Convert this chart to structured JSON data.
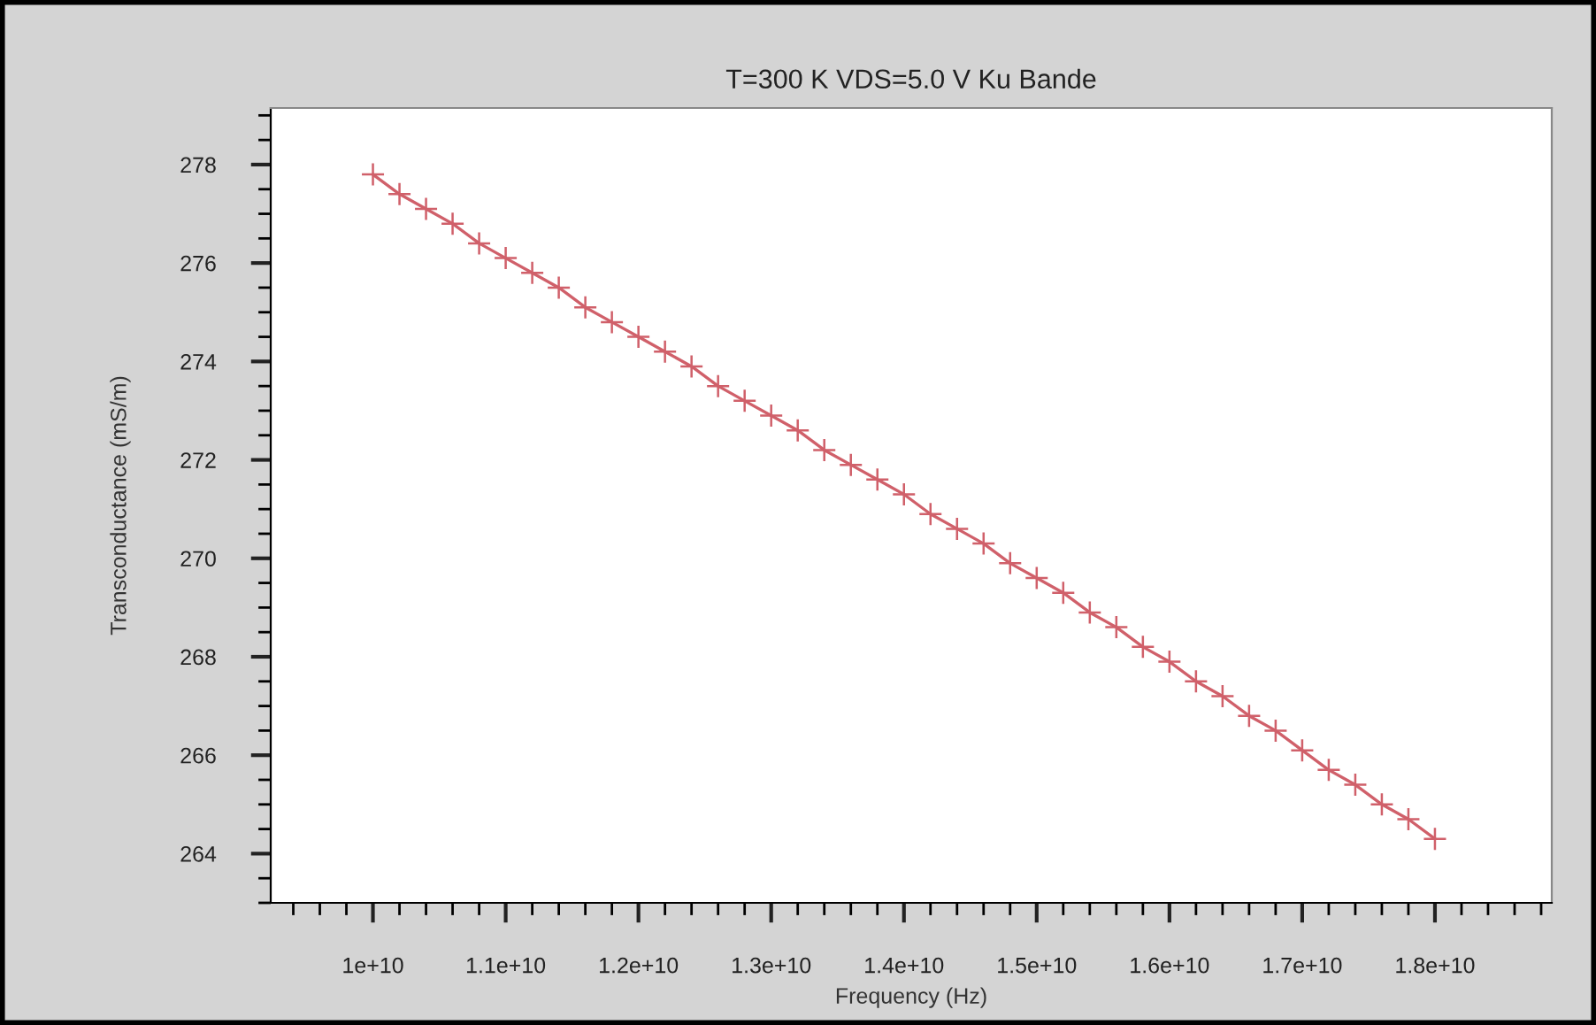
{
  "chart_data": {
    "type": "line",
    "title": "T=300 K VDS=5.0 V Ku Bande",
    "xlabel": "Frequency (Hz)",
    "ylabel": "Transconductance (mS/m)",
    "x": [
      10000000000.0,
      10200000000.0,
      10400000000.0,
      10600000000.0,
      10800000000.0,
      11000000000.0,
      11200000000.0,
      11400000000.0,
      11600000000.0,
      11800000000.0,
      12000000000.0,
      12200000000.0,
      12400000000.0,
      12600000000.0,
      12800000000.0,
      13000000000.0,
      13200000000.0,
      13400000000.0,
      13600000000.0,
      13800000000.0,
      14000000000.0,
      14200000000.0,
      14400000000.0,
      14600000000.0,
      14800000000.0,
      15000000000.0,
      15200000000.0,
      15400000000.0,
      15600000000.0,
      15800000000.0,
      16000000000.0,
      16200000000.0,
      16400000000.0,
      16600000000.0,
      16800000000.0,
      17000000000.0,
      17200000000.0,
      17400000000.0,
      17600000000.0,
      17800000000.0,
      18000000000.0
    ],
    "series": [
      {
        "color": "#d0606a",
        "values": [
          277.8,
          277.4,
          277.1,
          276.8,
          276.4,
          276.1,
          275.8,
          275.5,
          275.1,
          274.8,
          274.5,
          274.2,
          273.9,
          273.5,
          273.2,
          272.9,
          272.6,
          272.2,
          271.9,
          271.6,
          271.3,
          270.9,
          270.6,
          270.3,
          269.9,
          269.6,
          269.3,
          268.9,
          268.6,
          268.2,
          267.9,
          267.5,
          267.2,
          266.8,
          266.5,
          266.1,
          265.7,
          265.4,
          265.0,
          264.7,
          264.3
        ]
      }
    ],
    "xlim": [
      9230000000.0,
      18880000000.0
    ],
    "ylim": [
      263.0,
      279.15
    ],
    "xticks": [
      {
        "value": 10000000000.0,
        "label": "1e+10"
      },
      {
        "value": 11000000000.0,
        "label": "1.1e+10"
      },
      {
        "value": 12000000000.0,
        "label": "1.2e+10"
      },
      {
        "value": 13000000000.0,
        "label": "1.3e+10"
      },
      {
        "value": 14000000000.0,
        "label": "1.4e+10"
      },
      {
        "value": 15000000000.0,
        "label": "1.5e+10"
      },
      {
        "value": 16000000000.0,
        "label": "1.6e+10"
      },
      {
        "value": 17000000000.0,
        "label": "1.7e+10"
      },
      {
        "value": 18000000000.0,
        "label": "1.8e+10"
      }
    ],
    "yticks": [
      264,
      266,
      268,
      270,
      272,
      274,
      276,
      278
    ],
    "marker": "cross",
    "grid": false,
    "legend": false
  }
}
